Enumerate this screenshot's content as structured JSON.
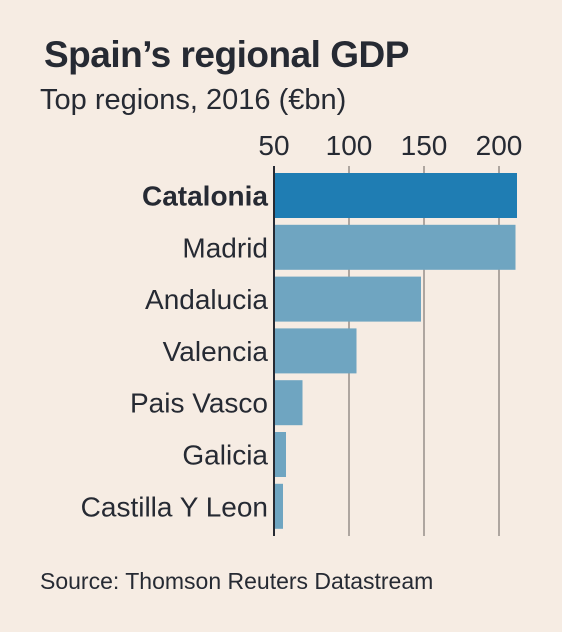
{
  "chart_data": {
    "type": "bar",
    "orientation": "horizontal",
    "title": "Spain’s regional GDP",
    "subtitle": "Top regions, 2016 (€bn)",
    "categories": [
      "Catalonia",
      "Madrid",
      "Andalucia",
      "Valencia",
      "Pais Vasco",
      "Galicia",
      "Castilla Y Leon"
    ],
    "values": [
      212,
      211,
      148,
      105,
      69,
      58,
      56
    ],
    "highlight": "Catalonia",
    "xlim": [
      50,
      225
    ],
    "xticks": [
      50,
      100,
      150,
      200
    ],
    "xaxis_position": "top",
    "grid": true,
    "source": "Source: Thomson Reuters Datastream",
    "colors": {
      "background": "#f6ece3",
      "highlight_bar": "#1f7db3",
      "bar": "#6fa5c1",
      "gridline": "#66605c",
      "text": "#262a33"
    }
  }
}
